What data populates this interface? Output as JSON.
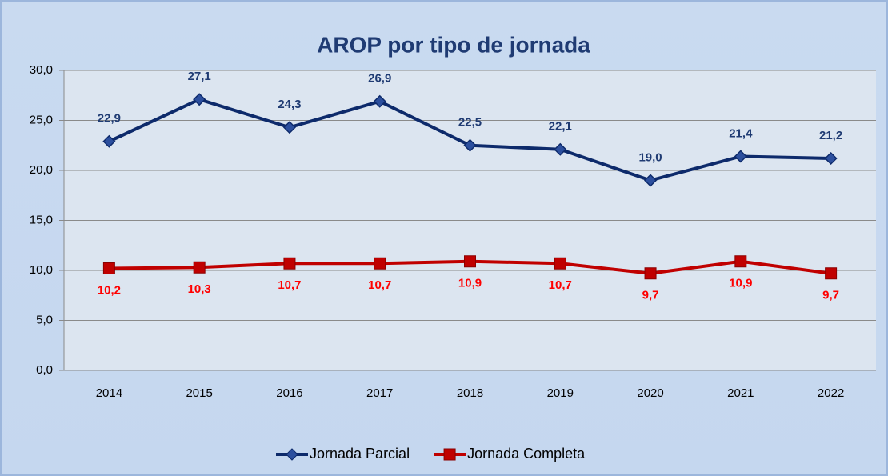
{
  "chart_data": {
    "type": "line",
    "title": "AROP por tipo de jornada",
    "categories": [
      "2014",
      "2015",
      "2016",
      "2017",
      "2018",
      "2019",
      "2020",
      "2021",
      "2022"
    ],
    "series": [
      {
        "name": "Jornada Parcial",
        "color": "#0d2a6b",
        "label_color": "#1f3b73",
        "marker": "diamond",
        "label_position": "above",
        "values": [
          22.9,
          27.1,
          24.3,
          26.9,
          22.5,
          22.1,
          19.0,
          21.4,
          21.2
        ],
        "value_labels": [
          "22,9",
          "27,1",
          "24,3",
          "26,9",
          "22,5",
          "22,1",
          "19,0",
          "21,4",
          "21,2"
        ]
      },
      {
        "name": "Jornada Completa",
        "color": "#c00000",
        "label_color": "#ff0000",
        "marker": "square",
        "label_position": "below",
        "values": [
          10.2,
          10.3,
          10.7,
          10.7,
          10.9,
          10.7,
          9.7,
          10.9,
          9.7
        ],
        "value_labels": [
          "10,2",
          "10,3",
          "10,7",
          "10,7",
          "10,9",
          "10,7",
          "9,7",
          "10,9",
          "9,7"
        ]
      }
    ],
    "ylim": [
      0,
      30
    ],
    "yticks": [
      {
        "value": 0,
        "label": "0,0"
      },
      {
        "value": 5,
        "label": "5,0"
      },
      {
        "value": 10,
        "label": "10,0"
      },
      {
        "value": 15,
        "label": "15,0"
      },
      {
        "value": 20,
        "label": "20,0"
      },
      {
        "value": 25,
        "label": "25,0"
      },
      {
        "value": 30,
        "label": "30,0"
      }
    ],
    "grid": true,
    "legend": "bottom"
  }
}
